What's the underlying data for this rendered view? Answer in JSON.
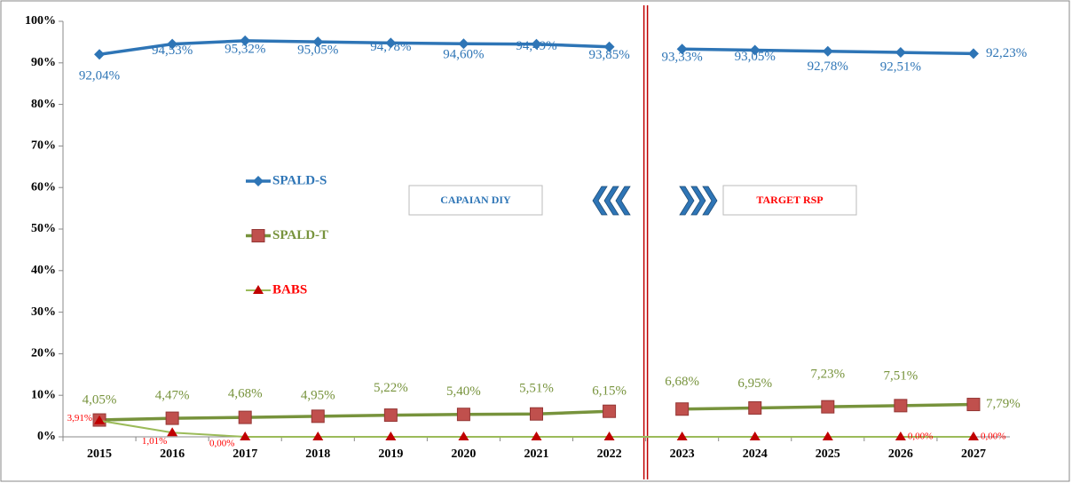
{
  "chart_data": {
    "type": "line",
    "categories": [
      "2015",
      "2016",
      "2017",
      "2018",
      "2019",
      "2020",
      "2021",
      "2022",
      "2023",
      "2024",
      "2025",
      "2026",
      "2027"
    ],
    "ylim": [
      0,
      100
    ],
    "yticks": [
      {
        "value": 0,
        "label": "0%"
      },
      {
        "value": 10,
        "label": "10%"
      },
      {
        "value": 20,
        "label": "20%"
      },
      {
        "value": 30,
        "label": "30%"
      },
      {
        "value": 40,
        "label": "40%"
      },
      {
        "value": 50,
        "label": "50%"
      },
      {
        "value": 60,
        "label": "60%"
      },
      {
        "value": 70,
        "label": "70%"
      },
      {
        "value": 80,
        "label": "80%"
      },
      {
        "value": 90,
        "label": "90%"
      },
      {
        "value": 100,
        "label": "100%"
      }
    ],
    "grid": false,
    "break_after": 7,
    "legend": "inside-left",
    "annotations": [
      "CAPAIAN DIY",
      "TARGET RSP"
    ],
    "series": [
      {
        "name": "SPALD-S",
        "color": "#2e75b6",
        "marker_color": "#2e75b6",
        "label_color": "#2e75b6",
        "marker": "diamond",
        "values": [
          92.04,
          94.53,
          95.32,
          95.05,
          94.78,
          94.6,
          94.49,
          93.85,
          93.33,
          93.05,
          92.78,
          92.51,
          92.23
        ],
        "value_labels": [
          "92,04%",
          "94,53%",
          "95,32%",
          "95,05%",
          "94,78%",
          "94,60%",
          "94,49%",
          "93,85%",
          "93,33%",
          "93,05%",
          "92,78%",
          "92,51%",
          "92,23%"
        ]
      },
      {
        "name": "SPALD-T",
        "color": "#77933c",
        "marker_color": "#c0504d",
        "label_color": "#77933c",
        "marker": "square",
        "values": [
          4.05,
          4.47,
          4.68,
          4.95,
          5.22,
          5.4,
          5.51,
          6.15,
          6.68,
          6.95,
          7.23,
          7.51,
          7.79
        ],
        "value_labels": [
          "4,05%",
          "4,47%",
          "4,68%",
          "4,95%",
          "5,22%",
          "5,40%",
          "5,51%",
          "6,15%",
          "6,68%",
          "6,95%",
          "7,23%",
          "7,51%",
          "7,79%"
        ]
      },
      {
        "name": "BABS",
        "color": "#9bbb59",
        "marker_color": "#c00000",
        "label_color": "#ff0000",
        "marker": "triangle",
        "values": [
          3.91,
          1.01,
          0,
          0,
          0,
          0,
          0,
          0,
          0,
          0,
          0,
          0,
          0
        ],
        "value_labels": [
          "3,91%",
          "1,01%",
          "0,00%",
          null,
          null,
          null,
          null,
          null,
          null,
          null,
          null,
          "0,00%",
          "0,00%"
        ]
      }
    ]
  }
}
